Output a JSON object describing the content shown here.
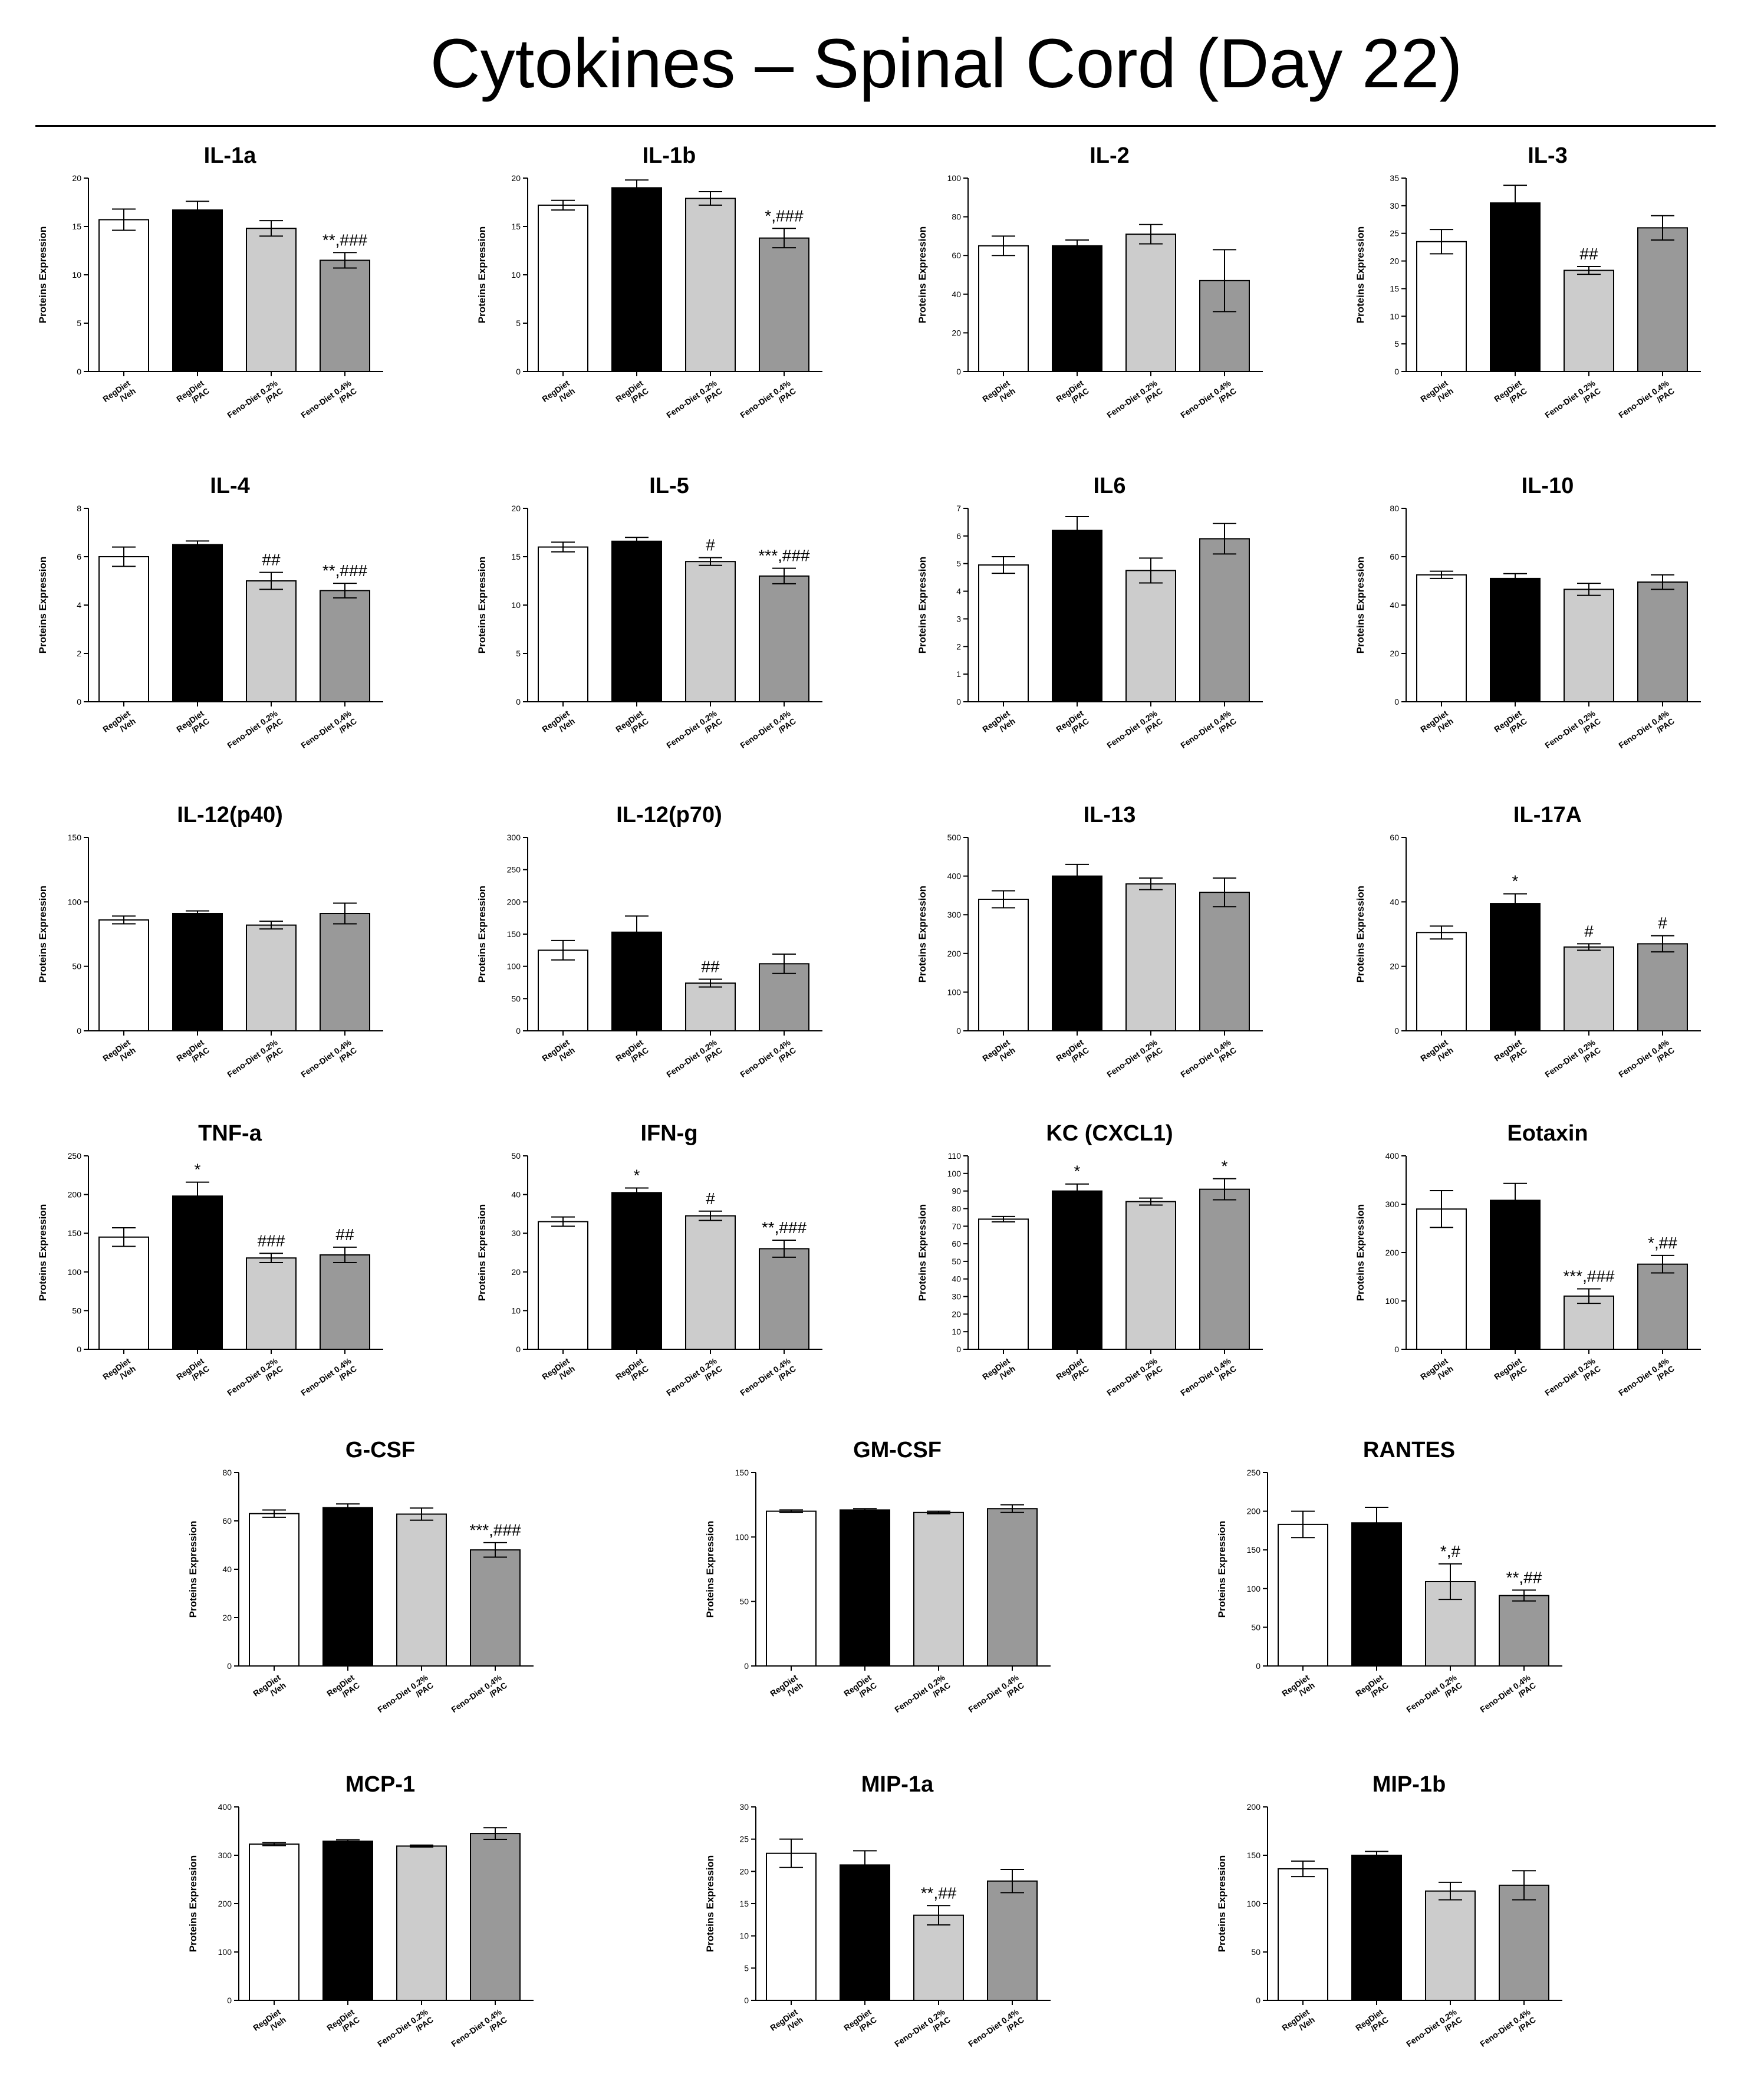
{
  "page": {
    "title": "Cytokines – Spinal Cord (Day 22)"
  },
  "axis_label": "Proteins Expression",
  "group_labels": [
    [
      "RegDiet",
      "/Veh"
    ],
    [
      "RegDiet",
      "/PAC"
    ],
    [
      "Feno-Diet 0.2%",
      "/PAC"
    ],
    [
      "Feno-Diet 0.4%",
      "/PAC"
    ]
  ],
  "bar_colors": [
    "#ffffff",
    "#000000",
    "#cccccc",
    "#999999"
  ],
  "chart_data": [
    {
      "type": "bar",
      "title": "IL-1a",
      "ylim": [
        0,
        20
      ],
      "yticks": [
        0,
        5,
        10,
        15,
        20
      ],
      "values": [
        15.7,
        16.7,
        14.8,
        11.5
      ],
      "errors": [
        1.1,
        0.9,
        0.8,
        0.8
      ],
      "annotations": [
        "",
        "",
        "",
        "**,###"
      ]
    },
    {
      "type": "bar",
      "title": "IL-1b",
      "ylim": [
        0,
        20
      ],
      "yticks": [
        0,
        5,
        10,
        15,
        20
      ],
      "values": [
        17.2,
        19.0,
        17.9,
        13.8
      ],
      "errors": [
        0.5,
        0.8,
        0.7,
        1.0
      ],
      "annotations": [
        "",
        "",
        "",
        "*,###"
      ]
    },
    {
      "type": "bar",
      "title": "IL-2",
      "ylim": [
        0,
        100
      ],
      "yticks": [
        0,
        20,
        40,
        60,
        80,
        100
      ],
      "values": [
        65,
        65,
        71,
        47
      ],
      "errors": [
        5,
        3,
        5,
        16
      ],
      "annotations": [
        "",
        "",
        "",
        ""
      ]
    },
    {
      "type": "bar",
      "title": "IL-3",
      "ylim": [
        0,
        35
      ],
      "yticks": [
        0,
        5,
        10,
        15,
        20,
        25,
        30,
        35
      ],
      "values": [
        23.5,
        30.5,
        18.3,
        26.0
      ],
      "errors": [
        2.2,
        3.2,
        0.7,
        2.2
      ],
      "annotations": [
        "",
        "",
        "##",
        ""
      ]
    },
    {
      "type": "bar",
      "title": "IL-4",
      "ylim": [
        0,
        8
      ],
      "yticks": [
        0,
        2,
        4,
        6,
        8
      ],
      "values": [
        6.0,
        6.5,
        5.0,
        4.6
      ],
      "errors": [
        0.4,
        0.15,
        0.35,
        0.3
      ],
      "annotations": [
        "",
        "",
        "##",
        "**,###"
      ]
    },
    {
      "type": "bar",
      "title": "IL-5",
      "ylim": [
        0,
        20
      ],
      "yticks": [
        0,
        5,
        10,
        15,
        20
      ],
      "values": [
        16.0,
        16.6,
        14.5,
        13.0
      ],
      "errors": [
        0.5,
        0.4,
        0.4,
        0.8
      ],
      "annotations": [
        "",
        "",
        "#",
        "***,###"
      ]
    },
    {
      "type": "bar",
      "title": "IL6",
      "ylim": [
        0,
        7
      ],
      "yticks": [
        0,
        1,
        2,
        3,
        4,
        5,
        6,
        7
      ],
      "values": [
        4.95,
        6.2,
        4.75,
        5.9
      ],
      "errors": [
        0.3,
        0.5,
        0.45,
        0.55
      ],
      "annotations": [
        "",
        "",
        "",
        ""
      ]
    },
    {
      "type": "bar",
      "title": "IL-10",
      "ylim": [
        0,
        80
      ],
      "yticks": [
        0,
        20,
        40,
        60,
        80
      ],
      "values": [
        52.5,
        51.0,
        46.5,
        49.5
      ],
      "errors": [
        1.5,
        2.0,
        2.5,
        3.0
      ],
      "annotations": [
        "",
        "",
        "",
        ""
      ]
    },
    {
      "type": "bar",
      "title": "IL-12(p40)",
      "ylim": [
        0,
        150
      ],
      "yticks": [
        0,
        50,
        100,
        150
      ],
      "values": [
        86,
        91,
        82,
        91
      ],
      "errors": [
        3,
        2,
        3,
        8
      ],
      "annotations": [
        "",
        "",
        "",
        ""
      ]
    },
    {
      "type": "bar",
      "title": "IL-12(p70)",
      "ylim": [
        0,
        300
      ],
      "yticks": [
        0,
        50,
        100,
        150,
        200,
        250,
        300
      ],
      "values": [
        125,
        153,
        74,
        104
      ],
      "errors": [
        15,
        25,
        6,
        15
      ],
      "annotations": [
        "",
        "",
        "##",
        ""
      ]
    },
    {
      "type": "bar",
      "title": "IL-13",
      "ylim": [
        0,
        500
      ],
      "yticks": [
        0,
        100,
        200,
        300,
        400,
        500
      ],
      "values": [
        340,
        400,
        380,
        358
      ],
      "errors": [
        22,
        30,
        15,
        37
      ],
      "annotations": [
        "",
        "",
        "",
        ""
      ]
    },
    {
      "type": "bar",
      "title": "IL-17A",
      "ylim": [
        0,
        60
      ],
      "yticks": [
        0,
        20,
        40,
        60
      ],
      "values": [
        30.5,
        39.5,
        26.0,
        27.0
      ],
      "errors": [
        2.0,
        3.0,
        1.0,
        2.5
      ],
      "annotations": [
        "",
        "*",
        "#",
        "#"
      ]
    },
    {
      "type": "bar",
      "title": "TNF-a",
      "ylim": [
        0,
        250
      ],
      "yticks": [
        0,
        50,
        100,
        150,
        200,
        250
      ],
      "values": [
        145,
        198,
        118,
        122
      ],
      "errors": [
        12,
        18,
        6,
        10
      ],
      "annotations": [
        "",
        "*",
        "###",
        "##"
      ]
    },
    {
      "type": "bar",
      "title": "IFN-g",
      "ylim": [
        0,
        50
      ],
      "yticks": [
        0,
        10,
        20,
        30,
        40,
        50
      ],
      "values": [
        33.0,
        40.5,
        34.5,
        26.0
      ],
      "errors": [
        1.2,
        1.2,
        1.2,
        2.2
      ],
      "annotations": [
        "",
        "*",
        "#",
        "**,###"
      ]
    },
    {
      "type": "bar",
      "title": "KC (CXCL1)",
      "ylim": [
        0,
        110
      ],
      "yticks": [
        0,
        10,
        20,
        30,
        40,
        50,
        60,
        70,
        80,
        90,
        100,
        110
      ],
      "values": [
        74,
        90,
        84,
        91
      ],
      "errors": [
        1.5,
        4,
        2,
        6
      ],
      "annotations": [
        "",
        "*",
        "",
        "*"
      ]
    },
    {
      "type": "bar",
      "title": "Eotaxin",
      "ylim": [
        0,
        400
      ],
      "yticks": [
        0,
        100,
        200,
        300,
        400
      ],
      "values": [
        290,
        308,
        110,
        176
      ],
      "errors": [
        38,
        35,
        15,
        18
      ],
      "annotations": [
        "",
        "",
        "***,###",
        "*,##"
      ]
    },
    {
      "type": "bar",
      "title": "G-CSF",
      "ylim": [
        0,
        80
      ],
      "yticks": [
        0,
        20,
        40,
        60,
        80
      ],
      "values": [
        63,
        65.5,
        62.8,
        48
      ],
      "errors": [
        1.5,
        1.5,
        2.5,
        3.0
      ],
      "annotations": [
        "",
        "",
        "",
        "***,###"
      ]
    },
    {
      "type": "bar",
      "title": "GM-CSF",
      "ylim": [
        0,
        150
      ],
      "yticks": [
        0,
        50,
        100,
        150
      ],
      "values": [
        120,
        121,
        119,
        122
      ],
      "errors": [
        1,
        1,
        1,
        3
      ],
      "annotations": [
        "",
        "",
        "",
        ""
      ]
    },
    {
      "type": "bar",
      "title": "RANTES",
      "ylim": [
        0,
        250
      ],
      "yticks": [
        0,
        50,
        100,
        150,
        200,
        250
      ],
      "values": [
        183,
        185,
        109,
        91
      ],
      "errors": [
        17,
        20,
        23,
        7
      ],
      "annotations": [
        "",
        "",
        "*,#",
        "**,##"
      ]
    },
    {
      "type": "bar",
      "title": "MCP-1",
      "ylim": [
        0,
        400
      ],
      "yticks": [
        0,
        100,
        200,
        300,
        400
      ],
      "values": [
        323,
        329,
        319,
        345
      ],
      "errors": [
        3,
        3,
        2,
        12
      ],
      "annotations": [
        "",
        "",
        "",
        ""
      ]
    },
    {
      "type": "bar",
      "title": "MIP-1a",
      "ylim": [
        0,
        30
      ],
      "yticks": [
        0,
        5,
        10,
        15,
        20,
        25,
        30
      ],
      "values": [
        22.8,
        21.0,
        13.2,
        18.5
      ],
      "errors": [
        2.2,
        2.2,
        1.5,
        1.8
      ],
      "annotations": [
        "",
        "",
        "**,##",
        ""
      ]
    },
    {
      "type": "bar",
      "title": "MIP-1b",
      "ylim": [
        0,
        200
      ],
      "yticks": [
        0,
        50,
        100,
        150,
        200
      ],
      "values": [
        136,
        150,
        113,
        119
      ],
      "errors": [
        8,
        4,
        9,
        15
      ],
      "annotations": [
        "",
        "",
        "",
        ""
      ]
    }
  ]
}
